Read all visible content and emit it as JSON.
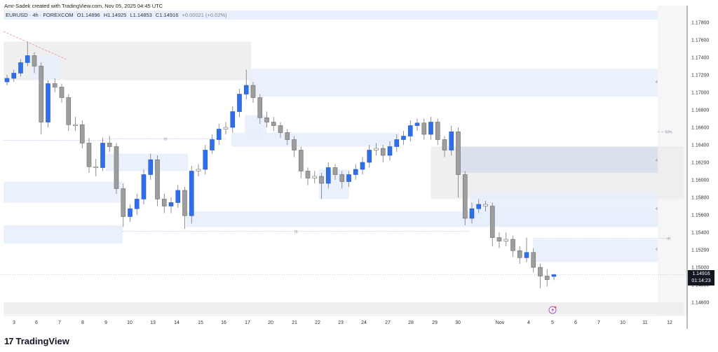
{
  "watermark": "Amr-Sadek created with TradingView.com, Nov 05, 2025 04:45 UTC",
  "legend": {
    "symbol": "EURUSD · 4h · FOREXCOM",
    "open": "O1.14896",
    "high": "H1.14925",
    "low": "L1.14853",
    "close": "C1.14916",
    "change": "+0.00021 (+0.02%)"
  },
  "price_tag": {
    "price": "1.14916",
    "countdown": "01:14:23"
  },
  "footer": {
    "logo_mark": "17",
    "brand": "TradingView"
  },
  "colors": {
    "up": "#2f6fe8",
    "down": "#9e9e9e",
    "zone_blue": "#e6eefc",
    "zone_grey": "#ececec",
    "axis_text": "#333333"
  },
  "chart_data": {
    "type": "candlestick",
    "symbol": "EURUSD",
    "timeframe": "4h",
    "ylim": [
      1.1446,
      1.1806
    ],
    "y_ticks": [
      "1.17800",
      "1.17600",
      "1.17400",
      "1.17200",
      "1.17000",
      "1.16800",
      "1.16600",
      "1.16400",
      "1.16200",
      "1.16000",
      "1.15800",
      "1.15600",
      "1.15400",
      "1.15200",
      "1.15000",
      "1.14800",
      "1.14600"
    ],
    "x_tick_labels": [
      "3",
      "6",
      "7",
      "8",
      "9",
      "10",
      "13",
      "14",
      "15",
      "16",
      "17",
      "20",
      "21",
      "22",
      "23",
      "24",
      "27",
      "28",
      "29",
      "30",
      "Nov",
      "4",
      "5",
      "6",
      "7",
      "10",
      "11",
      "12"
    ],
    "candles_ohlc": [
      [
        1.1712,
        1.172,
        1.1708,
        1.1716
      ],
      [
        1.1716,
        1.1726,
        1.1712,
        1.1722
      ],
      [
        1.1722,
        1.1738,
        1.1718,
        1.1734
      ],
      [
        1.1734,
        1.1758,
        1.173,
        1.1742
      ],
      [
        1.1742,
        1.1746,
        1.1722,
        1.173
      ],
      [
        1.173,
        1.1734,
        1.1652,
        1.1666
      ],
      [
        1.1666,
        1.1714,
        1.166,
        1.171
      ],
      [
        1.171,
        1.1716,
        1.17,
        1.1706
      ],
      [
        1.1706,
        1.171,
        1.1688,
        1.1694
      ],
      [
        1.1694,
        1.1698,
        1.1656,
        1.1663
      ],
      [
        1.1663,
        1.1672,
        1.1656,
        1.1663
      ],
      [
        1.1663,
        1.1668,
        1.1636,
        1.1642
      ],
      [
        1.1642,
        1.1648,
        1.1608,
        1.1615
      ],
      [
        1.1615,
        1.1624,
        1.1604,
        1.1614
      ],
      [
        1.1614,
        1.1648,
        1.161,
        1.1642
      ],
      [
        1.1642,
        1.165,
        1.1632,
        1.1638
      ],
      [
        1.1638,
        1.1642,
        1.1584,
        1.159
      ],
      [
        1.159,
        1.1596,
        1.1546,
        1.1558
      ],
      [
        1.1558,
        1.1572,
        1.1552,
        1.1567
      ],
      [
        1.1567,
        1.1584,
        1.156,
        1.1578
      ],
      [
        1.1578,
        1.1612,
        1.1572,
        1.1606
      ],
      [
        1.1606,
        1.163,
        1.16,
        1.1623
      ],
      [
        1.1623,
        1.1628,
        1.157,
        1.1578
      ],
      [
        1.1578,
        1.1584,
        1.1562,
        1.157
      ],
      [
        1.157,
        1.158,
        1.1562,
        1.1574
      ],
      [
        1.1574,
        1.1594,
        1.1568,
        1.1588
      ],
      [
        1.1588,
        1.1592,
        1.1544,
        1.1559
      ],
      [
        1.1559,
        1.1616,
        1.155,
        1.161
      ],
      [
        1.161,
        1.1618,
        1.1604,
        1.1612
      ],
      [
        1.1612,
        1.164,
        1.1606,
        1.1634
      ],
      [
        1.1634,
        1.1652,
        1.163,
        1.1646
      ],
      [
        1.1646,
        1.1664,
        1.164,
        1.1658
      ],
      [
        1.1658,
        1.1666,
        1.1652,
        1.166
      ],
      [
        1.166,
        1.1684,
        1.1654,
        1.1678
      ],
      [
        1.1678,
        1.1704,
        1.1672,
        1.1698
      ],
      [
        1.1698,
        1.1726,
        1.1692,
        1.1708
      ],
      [
        1.1708,
        1.1712,
        1.1688,
        1.1694
      ],
      [
        1.1694,
        1.1698,
        1.1664,
        1.1671
      ],
      [
        1.1671,
        1.1678,
        1.166,
        1.1666
      ],
      [
        1.1666,
        1.1672,
        1.1656,
        1.1662
      ],
      [
        1.1662,
        1.1666,
        1.1648,
        1.1654
      ],
      [
        1.1654,
        1.1658,
        1.164,
        1.1646
      ],
      [
        1.1646,
        1.165,
        1.1626,
        1.1634
      ],
      [
        1.1634,
        1.1638,
        1.1602,
        1.161
      ],
      [
        1.161,
        1.1614,
        1.1594,
        1.1602
      ],
      [
        1.1602,
        1.161,
        1.1596,
        1.1604
      ],
      [
        1.1604,
        1.1608,
        1.1578,
        1.1596
      ],
      [
        1.1596,
        1.162,
        1.159,
        1.1614
      ],
      [
        1.1614,
        1.1618,
        1.16,
        1.1606
      ],
      [
        1.1606,
        1.161,
        1.159,
        1.1598
      ],
      [
        1.1598,
        1.161,
        1.1592,
        1.1606
      ],
      [
        1.1606,
        1.1618,
        1.16,
        1.1612
      ],
      [
        1.1612,
        1.1626,
        1.1606,
        1.162
      ],
      [
        1.162,
        1.164,
        1.1614,
        1.1634
      ],
      [
        1.1634,
        1.1642,
        1.1628,
        1.1636
      ],
      [
        1.1636,
        1.164,
        1.162,
        1.1628
      ],
      [
        1.1628,
        1.1644,
        1.1622,
        1.1638
      ],
      [
        1.1638,
        1.1652,
        1.1632,
        1.1646
      ],
      [
        1.1646,
        1.1656,
        1.164,
        1.165
      ],
      [
        1.165,
        1.1668,
        1.1644,
        1.1662
      ],
      [
        1.1662,
        1.167,
        1.1656,
        1.1665
      ],
      [
        1.1665,
        1.167,
        1.1646,
        1.1652
      ],
      [
        1.1652,
        1.1672,
        1.1646,
        1.1666
      ],
      [
        1.1666,
        1.167,
        1.164,
        1.1646
      ],
      [
        1.1646,
        1.165,
        1.1626,
        1.1634
      ],
      [
        1.1634,
        1.1662,
        1.1628,
        1.1655
      ],
      [
        1.1655,
        1.166,
        1.158,
        1.1606
      ],
      [
        1.1606,
        1.161,
        1.1548,
        1.1556
      ],
      [
        1.1556,
        1.1574,
        1.155,
        1.1567
      ],
      [
        1.1567,
        1.1578,
        1.1562,
        1.1572
      ],
      [
        1.1572,
        1.1576,
        1.1564,
        1.157
      ],
      [
        1.157,
        1.1574,
        1.1524,
        1.1534
      ],
      [
        1.1534,
        1.154,
        1.1522,
        1.153
      ],
      [
        1.153,
        1.154,
        1.1524,
        1.1532
      ],
      [
        1.1532,
        1.1536,
        1.1512,
        1.1519
      ],
      [
        1.1519,
        1.1524,
        1.1504,
        1.1511
      ],
      [
        1.1511,
        1.1534,
        1.1506,
        1.1517
      ],
      [
        1.1517,
        1.1522,
        1.1494,
        1.15
      ],
      [
        1.15,
        1.1504,
        1.1476,
        1.149
      ],
      [
        1.149,
        1.1498,
        1.1478,
        1.1486
      ],
      [
        1.14896,
        1.14925,
        1.14853,
        1.14916
      ]
    ],
    "zones": [
      {
        "color": "grey",
        "price_top": 1.1758,
        "price_bottom": 1.1714,
        "from_bar": -0.5,
        "to_bar": 35.7
      },
      {
        "color": "blue",
        "price_top": 1.1742,
        "price_bottom": 1.1714,
        "from_bar": 3.5,
        "to_bar": 7.7
      },
      {
        "color": "blue",
        "price_top": 1.1727,
        "price_bottom": 1.1695,
        "from_bar": 35.4,
        "to_bar": 95.2
      },
      {
        "color": "blue",
        "price_top": 1.1674,
        "price_bottom": 1.165,
        "from_bar": 34.8,
        "to_bar": 38
      },
      {
        "color": "blue",
        "price_top": 1.1654,
        "price_bottom": 1.1638,
        "from_bar": 32.8,
        "to_bar": 57.4
      },
      {
        "color": "blue",
        "price_top": 1.163,
        "price_bottom": 1.161,
        "from_bar": 14.4,
        "to_bar": 26.5
      },
      {
        "color": "blue",
        "price_top": 1.1612,
        "price_bottom": 1.1578,
        "from_bar": 45.6,
        "to_bar": 50
      },
      {
        "color": "blue",
        "price_top": 1.1598,
        "price_bottom": 1.1574,
        "from_bar": -0.5,
        "to_bar": 16.9
      },
      {
        "color": "blue",
        "price_top": 1.1548,
        "price_bottom": 1.1527,
        "from_bar": -0.5,
        "to_bar": 16.9
      },
      {
        "color": "blue",
        "price_top": 1.1564,
        "price_bottom": 1.1546,
        "from_bar": 26.2,
        "to_bar": 95.2
      },
      {
        "color": "grey",
        "price_top": 1.1638,
        "price_bottom": 1.1578,
        "from_bar": 62,
        "to_bar": 99
      },
      {
        "color": "blue-dark",
        "price_top": 1.1638,
        "price_bottom": 1.1608,
        "from_bar": 66,
        "to_bar": 95.2
      },
      {
        "color": "blue",
        "price_top": 1.1586,
        "price_bottom": 1.1547,
        "from_bar": 67.7,
        "to_bar": 95.2
      },
      {
        "color": "blue",
        "price_top": 1.1532,
        "price_bottom": 1.1506,
        "from_bar": 76.9,
        "to_bar": 95.2
      },
      {
        "color": "grey",
        "price_top": 1.146,
        "price_bottom": 1.1446,
        "from_bar": -0.5,
        "to_bar": 99
      }
    ],
    "levels": [
      {
        "price": 1.1645,
        "from_bar": -0.5,
        "to_bar": 14.4,
        "label": ""
      },
      {
        "price": 1.1647,
        "from_bar": 14.4,
        "to_bar": 32,
        "label": "IB"
      },
      {
        "price": 1.1541,
        "from_bar": 16.9,
        "to_bar": 67.7,
        "label": "IB"
      },
      {
        "price": 1.1533,
        "from_bar": 76.9,
        "to_bar": 97,
        "label": "IH"
      },
      {
        "price": 1.1655,
        "from_bar": 95.2,
        "to_bar": 97,
        "label": "50%"
      }
    ],
    "zone_labels": [
      "4",
      "4",
      "4",
      "4"
    ],
    "last_price": 1.14916
  }
}
